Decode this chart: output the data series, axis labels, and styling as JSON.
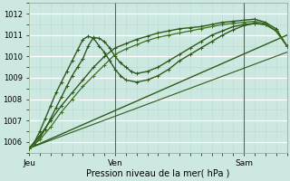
{
  "xlabel": "Pression niveau de la mer( hPa )",
  "bg_color": "#cce8e0",
  "grid_major_color": "#ffffff",
  "grid_minor_color": "#ddf0ea",
  "line_dark": "#2d5a1b",
  "line_mid": "#3d7020",
  "xlim": [
    0,
    48
  ],
  "ylim": [
    1005.5,
    1012.5
  ],
  "yticks": [
    1006,
    1007,
    1008,
    1009,
    1010,
    1011,
    1012
  ],
  "xtick_labels": [
    "Jeu",
    "Ven",
    "Sam"
  ],
  "xtick_positions": [
    0,
    16,
    40
  ],
  "vline_positions": [
    16,
    40
  ],
  "series": [
    {
      "x": [
        0,
        1,
        2,
        3,
        4,
        5,
        6,
        7,
        8,
        9,
        10,
        11,
        12,
        13,
        14,
        15,
        16,
        17,
        18,
        19,
        20,
        22,
        24,
        26,
        28,
        30,
        32,
        34,
        36,
        38,
        40,
        42,
        44,
        46,
        48
      ],
      "y": [
        1005.7,
        1005.9,
        1006.2,
        1006.6,
        1007.1,
        1007.6,
        1008.1,
        1008.6,
        1009.1,
        1009.5,
        1009.9,
        1010.5,
        1010.9,
        1010.85,
        1010.7,
        1010.4,
        1010.0,
        1009.7,
        1009.5,
        1009.3,
        1009.2,
        1009.3,
        1009.5,
        1009.8,
        1010.1,
        1010.4,
        1010.7,
        1011.0,
        1011.2,
        1011.4,
        1011.5,
        1011.55,
        1011.5,
        1011.2,
        1010.5
      ],
      "color": "#2d5a1b",
      "lw": 1.0,
      "marker": "+"
    },
    {
      "x": [
        0,
        1,
        2,
        3,
        4,
        5,
        6,
        7,
        8,
        9,
        10,
        11,
        12,
        13,
        14,
        15,
        16,
        17,
        18,
        20,
        22,
        24,
        26,
        28,
        30,
        32,
        34,
        36,
        38,
        40,
        42,
        44,
        46,
        48
      ],
      "y": [
        1005.7,
        1006.0,
        1006.5,
        1007.1,
        1007.7,
        1008.3,
        1008.8,
        1009.3,
        1009.8,
        1010.3,
        1010.8,
        1010.95,
        1010.85,
        1010.5,
        1010.2,
        1009.8,
        1009.4,
        1009.1,
        1008.9,
        1008.8,
        1008.9,
        1009.1,
        1009.4,
        1009.8,
        1010.1,
        1010.4,
        1010.7,
        1011.0,
        1011.25,
        1011.45,
        1011.55,
        1011.5,
        1011.2,
        1010.5
      ],
      "color": "#2d5a1b",
      "lw": 1.0,
      "marker": "+"
    },
    {
      "x": [
        0,
        2,
        4,
        6,
        8,
        10,
        12,
        14,
        16,
        18,
        20,
        22,
        24,
        26,
        28,
        30,
        32,
        34,
        36,
        38,
        40,
        42,
        44,
        46,
        48
      ],
      "y": [
        1005.7,
        1006.3,
        1007.0,
        1007.7,
        1008.3,
        1008.9,
        1009.5,
        1010.0,
        1010.4,
        1010.6,
        1010.8,
        1010.95,
        1011.1,
        1011.2,
        1011.3,
        1011.35,
        1011.4,
        1011.5,
        1011.6,
        1011.65,
        1011.7,
        1011.75,
        1011.6,
        1011.3,
        1010.5
      ],
      "color": "#2d5a1b",
      "lw": 1.0,
      "marker": "+"
    },
    {
      "x": [
        0,
        2,
        4,
        6,
        8,
        10,
        12,
        14,
        16,
        18,
        20,
        22,
        24,
        26,
        28,
        30,
        32,
        34,
        36,
        38,
        40,
        42,
        44,
        46,
        48
      ],
      "y": [
        1005.7,
        1006.1,
        1006.7,
        1007.4,
        1008.0,
        1008.6,
        1009.1,
        1009.6,
        1010.1,
        1010.35,
        1010.55,
        1010.75,
        1010.9,
        1011.0,
        1011.1,
        1011.2,
        1011.3,
        1011.4,
        1011.5,
        1011.55,
        1011.6,
        1011.65,
        1011.55,
        1011.2,
        1010.5
      ],
      "color": "#3d7020",
      "lw": 0.9,
      "marker": "+"
    },
    {
      "x": [
        0,
        48
      ],
      "y": [
        1005.7,
        1011.0
      ],
      "color": "#2d5a1b",
      "lw": 1.0,
      "marker": null
    },
    {
      "x": [
        0,
        48
      ],
      "y": [
        1005.7,
        1010.2
      ],
      "color": "#2d5a1b",
      "lw": 0.8,
      "marker": null
    }
  ]
}
